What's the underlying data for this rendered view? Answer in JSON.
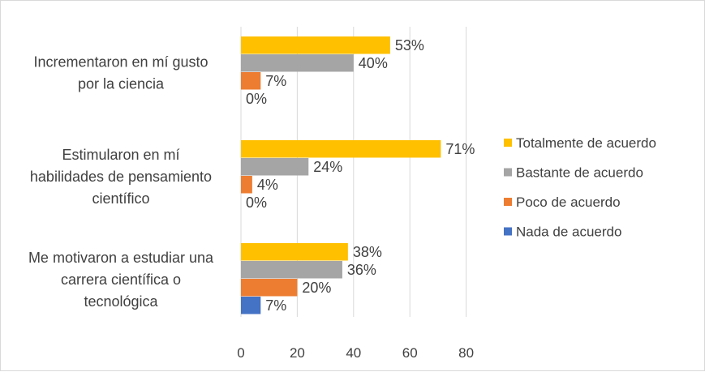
{
  "chart_data": {
    "type": "bar",
    "orientation": "horizontal",
    "title": "",
    "xlabel": "",
    "ylabel": "",
    "xlim": [
      0,
      80
    ],
    "xticks": [
      "0",
      "20",
      "40",
      "60",
      "80"
    ],
    "grid": true,
    "legend_position": "right",
    "categories": [
      [
        "Incrementaron en mí gusto",
        "por la ciencia"
      ],
      [
        "Estimularon en mí",
        "habilidades de pensamiento",
        "científico"
      ],
      [
        "Me motivaron a estudiar una",
        "carrera científica o",
        "tecnológica"
      ]
    ],
    "series": [
      {
        "name": "Totalmente de acuerdo",
        "color": "#ffc000",
        "values": [
          53,
          71,
          38
        ],
        "labels": [
          "53%",
          "71%",
          "38%"
        ]
      },
      {
        "name": "Bastante de acuerdo",
        "color": "#a5a5a5",
        "values": [
          40,
          24,
          36
        ],
        "labels": [
          "40%",
          "24%",
          "36%"
        ]
      },
      {
        "name": "Poco de acuerdo",
        "color": "#ed7d31",
        "values": [
          7,
          4,
          20
        ],
        "labels": [
          "7%",
          "4%",
          "20%"
        ]
      },
      {
        "name": "Nada de acuerdo",
        "color": "#4472c4",
        "values": [
          0,
          0,
          7
        ],
        "labels": [
          "0%",
          "0%",
          "7%"
        ]
      }
    ]
  }
}
